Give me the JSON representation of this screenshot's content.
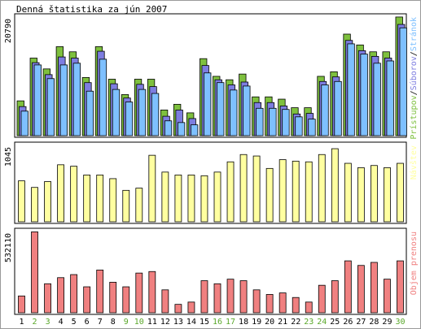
{
  "chart_data": {
    "type": "bar",
    "title": "Denná štatistika za jún 2007",
    "categories": [
      "1",
      "2",
      "3",
      "4",
      "5",
      "6",
      "7",
      "8",
      "9",
      "10",
      "11",
      "12",
      "13",
      "14",
      "15",
      "16",
      "17",
      "18",
      "19",
      "20",
      "21",
      "22",
      "23",
      "24",
      "25",
      "26",
      "27",
      "28",
      "29",
      "30"
    ],
    "weekend_days": [
      "2",
      "3",
      "9",
      "10",
      "16",
      "17",
      "23",
      "24",
      "30"
    ],
    "panels": [
      {
        "id": "traffic",
        "tick_label": "20790",
        "ymax": 20790,
        "legend": [
          "Prístupov",
          "Súborov",
          "Stránok"
        ],
        "series": [
          {
            "name": "Prístupov",
            "color": "#7ec03e",
            "values": [
              6100,
              13600,
              11700,
              15600,
              14700,
              10200,
              15600,
              9900,
              7200,
              9900,
              9900,
              4500,
              5500,
              4000,
              13500,
              10400,
              9800,
              10800,
              6800,
              6800,
              6400,
              4900,
              4900,
              10400,
              11200,
              17800,
              15900,
              14700,
              14700,
              20800
            ]
          },
          {
            "name": "Súborov",
            "color": "#7d7de0",
            "values": [
              5100,
              12800,
              10700,
              13800,
              13600,
              9300,
              14800,
              9100,
              6600,
              9000,
              8600,
              3400,
              4500,
              3000,
              12300,
              9800,
              8900,
              9400,
              5800,
              5800,
              5200,
              3800,
              3900,
              9500,
              10300,
              16700,
              14900,
              13900,
              13600,
              19500
            ]
          },
          {
            "name": "Stránok",
            "color": "#7ec0ff",
            "values": [
              4300,
              12400,
              10000,
              12400,
              12700,
              7800,
              13400,
              8100,
              5900,
              8100,
              7400,
              2600,
              2300,
              1900,
              11000,
              9300,
              8000,
              8700,
              4800,
              4800,
              4600,
              3300,
              2900,
              8900,
              9500,
              16100,
              14300,
              12700,
              13100,
              18900
            ]
          }
        ]
      },
      {
        "id": "visits",
        "tick_label": "1045",
        "ymax": 1045,
        "legend": [
          "Návštev"
        ],
        "series": [
          {
            "name": "Návštev",
            "color": "#ffffa0",
            "values": [
              560,
              470,
              550,
              780,
              760,
              640,
              640,
              590,
              430,
              460,
              910,
              680,
              640,
              640,
              630,
              680,
              820,
              920,
              900,
              730,
              850,
              830,
              820,
              920,
              1000,
              800,
              740,
              770,
              740,
              800
            ]
          }
        ]
      },
      {
        "id": "transfer",
        "tick_label": "532110",
        "ymax": 532110,
        "legend": [
          "Objem prenosu"
        ],
        "series": [
          {
            "name": "Objem prenosu",
            "color": "#f08080",
            "values": [
              110000,
              530000,
              190000,
              230000,
              250000,
              170000,
              280000,
              200000,
              170000,
              260000,
              270000,
              150000,
              55000,
              70000,
              210000,
              190000,
              220000,
              210000,
              150000,
              120000,
              130000,
              100000,
              70000,
              180000,
              210000,
              340000,
              310000,
              330000,
              220000,
              340000
            ]
          }
        ]
      }
    ]
  }
}
